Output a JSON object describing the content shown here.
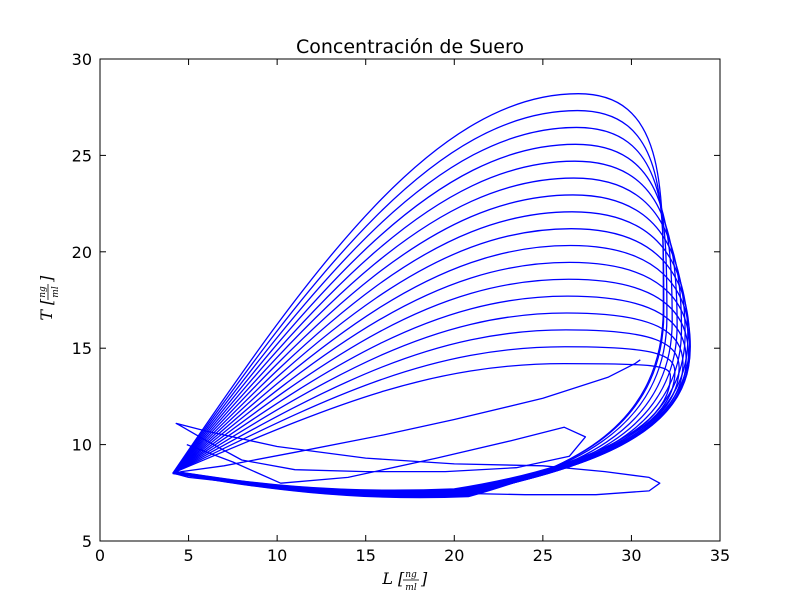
{
  "chart_data": {
    "type": "line",
    "title": "Concentración de Suero",
    "xlabel": {
      "var": "L",
      "num": "ng",
      "den": "ml"
    },
    "ylabel": {
      "var": "T",
      "num": "ng",
      "den": "ml"
    },
    "xlim": [
      0,
      35
    ],
    "ylim": [
      5,
      30
    ],
    "xticks": [
      0,
      5,
      10,
      15,
      20,
      25,
      30,
      35
    ],
    "yticks": [
      5,
      10,
      15,
      20,
      25,
      30
    ],
    "grid": false,
    "line_color": "#0000ff",
    "series": [
      {
        "x": [
          4.9,
          7.5,
          10.2,
          14,
          19,
          23.2,
          26.2,
          27.4,
          26.5,
          23.5,
          19.5,
          15,
          11,
          8,
          6,
          4.5,
          4.3,
          6,
          10,
          15,
          20,
          25,
          28.5,
          31,
          31.6,
          31,
          28,
          24,
          19,
          14,
          10,
          7,
          5,
          4.2,
          4.6,
          7,
          11,
          16,
          20,
          25,
          28.7,
          30.2,
          30.5
        ],
        "y": [
          10.0,
          9.1,
          8.0,
          8.3,
          9.3,
          10.2,
          10.9,
          10.4,
          9.4,
          8.8,
          8.6,
          8.6,
          8.7,
          9.2,
          10.2,
          11.0,
          11.1,
          10.7,
          9.9,
          9.3,
          9.0,
          8.9,
          8.6,
          8.3,
          8.0,
          7.6,
          7.4,
          7.4,
          7.5,
          7.6,
          7.8,
          8.1,
          8.3,
          8.5,
          8.6,
          8.9,
          9.6,
          10.5,
          11.3,
          12.4,
          13.5,
          14.2,
          14.4
        ]
      }
    ]
  }
}
